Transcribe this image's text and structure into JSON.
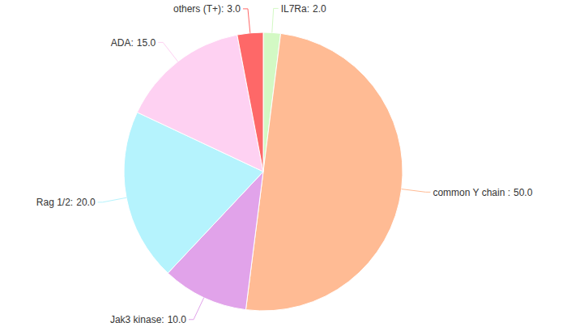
{
  "chart_data": {
    "type": "pie",
    "categories": [
      "IL7Ra:",
      "common Y chain :",
      "Jak3 kinase:",
      "Rag 1/2:",
      "ADA:",
      "others (T+):"
    ],
    "values": [
      2,
      50,
      10,
      20,
      15,
      3
    ],
    "value_labels": [
      "2.0",
      "50.0",
      "10.0",
      "20.0",
      "15.0",
      "3.0"
    ],
    "colors": [
      "#d3f9c4",
      "#ffbb94",
      "#e1a3ea",
      "#b5f3fd",
      "#fed1f2",
      "#fe6868"
    ],
    "data_labels": true
  }
}
